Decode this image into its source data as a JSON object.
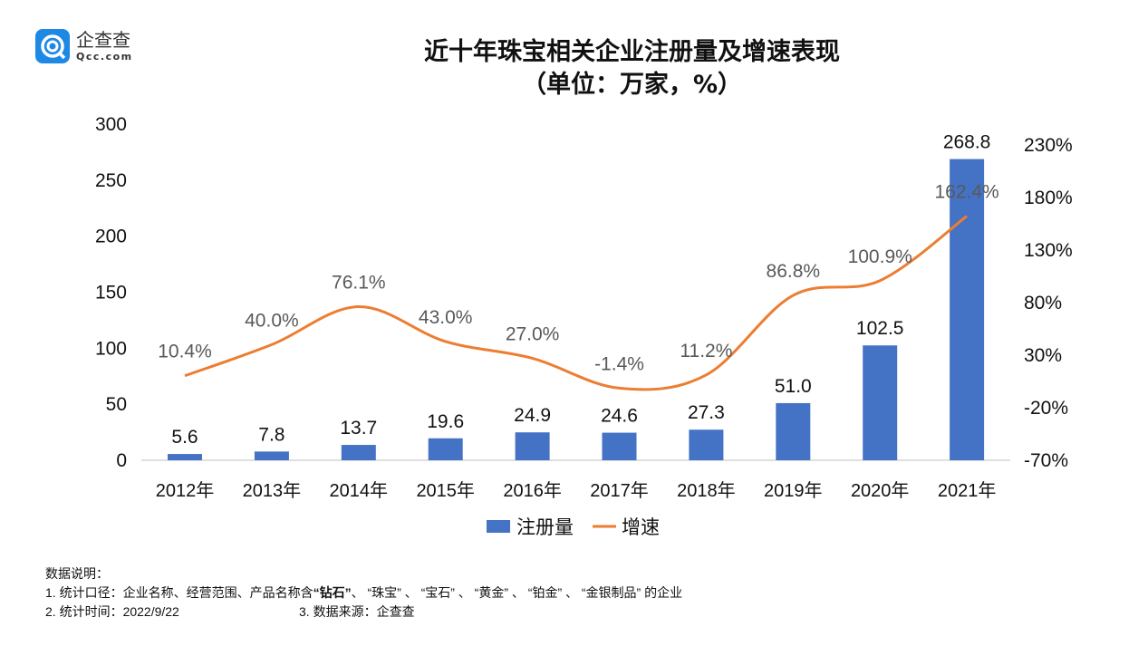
{
  "logo": {
    "name_cn": "企查查",
    "name_en": "Qcc.com"
  },
  "chart_data": {
    "type": "bar+line",
    "title": "近十年珠宝相关企业注册量及增速表现",
    "subtitle": "（单位：万家，%）",
    "categories": [
      "2012年",
      "2013年",
      "2014年",
      "2015年",
      "2016年",
      "2017年",
      "2018年",
      "2019年",
      "2020年",
      "2021年"
    ],
    "series": [
      {
        "name": "注册量",
        "type": "bar",
        "axis": "left",
        "color": "#4472c4",
        "values": [
          5.6,
          7.8,
          13.7,
          19.6,
          24.9,
          24.6,
          27.3,
          51.0,
          102.5,
          268.8
        ],
        "labels": [
          "5.6",
          "7.8",
          "13.7",
          "19.6",
          "24.9",
          "24.6",
          "27.3",
          "51.0",
          "102.5",
          "268.8"
        ]
      },
      {
        "name": "增速",
        "type": "line",
        "axis": "right",
        "color": "#ed7d31",
        "values": [
          10.4,
          40.0,
          76.1,
          43.0,
          27.0,
          -1.4,
          11.2,
          86.8,
          100.9,
          162.4
        ],
        "labels": [
          "10.4%",
          "40.0%",
          "76.1%",
          "43.0%",
          "27.0%",
          "-1.4%",
          "11.2%",
          "86.8%",
          "100.9%",
          "162.4%"
        ]
      }
    ],
    "y_left": {
      "range": [
        0,
        300
      ],
      "ticks": [
        "0",
        "50",
        "100",
        "150",
        "200",
        "250",
        "300"
      ]
    },
    "y_right": {
      "range": [
        -70,
        230
      ],
      "ticks": [
        "-70%",
        "-20%",
        "30%",
        "80%",
        "130%",
        "180%",
        "230%"
      ]
    },
    "grid": false,
    "legend": "bottom"
  },
  "notes": {
    "heading": "数据说明：",
    "line1_prefix": "1. 统计口径：企业名称、经营范围、产品名称含",
    "line1_bold": "“钻石”",
    "line1_suffix": "、 “珠宝” 、 “宝石” 、 “黄金” 、 “铂金” 、 “金银制品” 的企业",
    "line2": "2. 统计时间：2022/9/22",
    "line3": "3. 数据来源：企查查"
  }
}
